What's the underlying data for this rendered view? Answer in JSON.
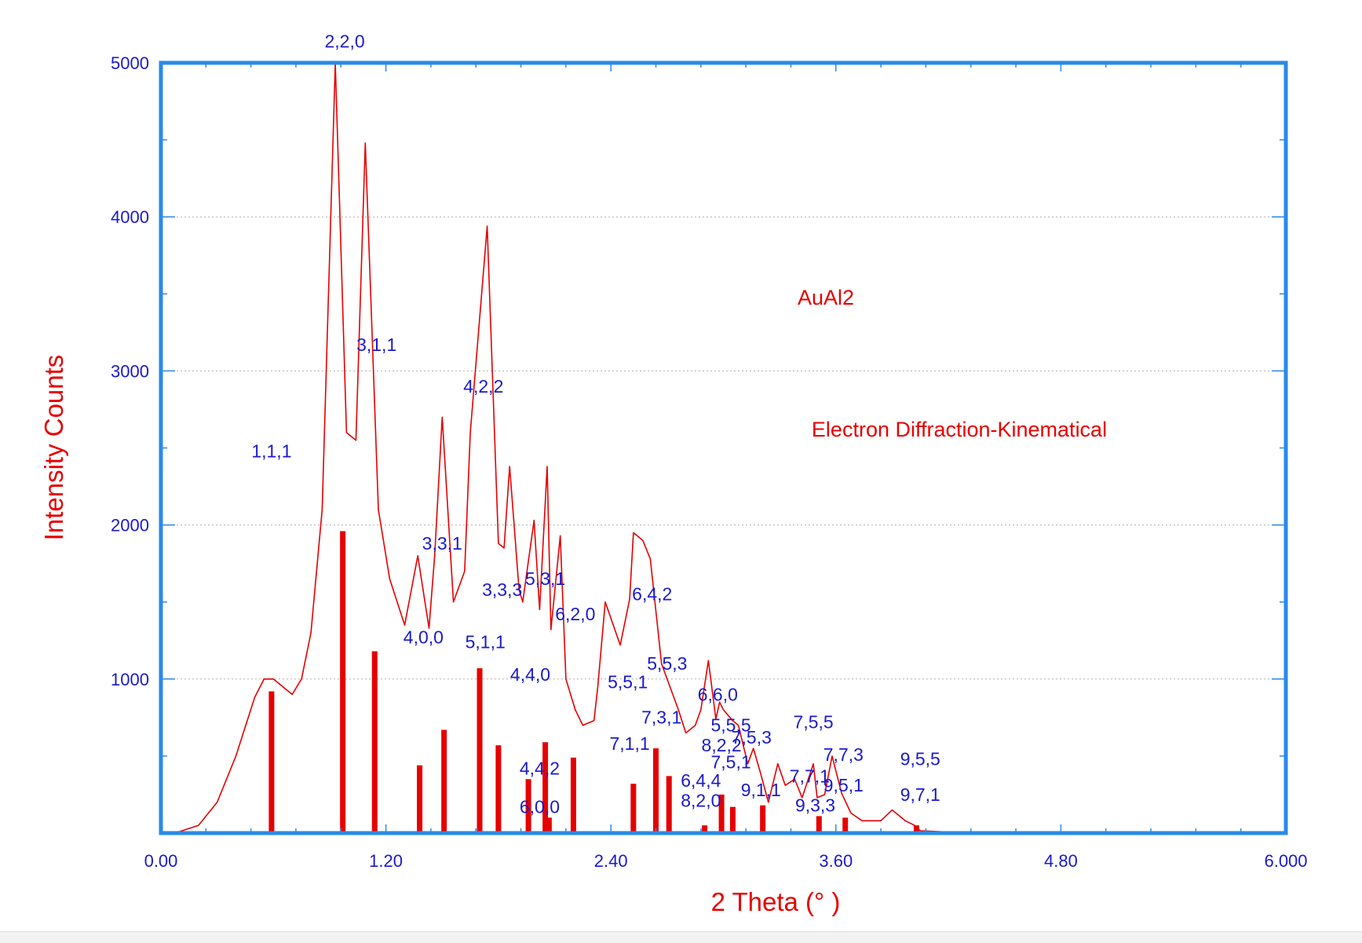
{
  "chart_data": {
    "type": "line",
    "xlabel": "2 Theta (° )",
    "ylabel": "Intensity Counts",
    "xlim": [
      0,
      6
    ],
    "ylim": [
      0,
      5000
    ],
    "x_ticks": [
      "0.00",
      "1.20",
      "2.40",
      "3.60",
      "4.80",
      "6.000"
    ],
    "y_ticks": [
      "1000",
      "2000",
      "3000",
      "4000",
      "5000"
    ],
    "y_grid": true,
    "annotations": [
      "AuAl2",
      "Electron Diffraction-Kinematical"
    ],
    "profile": {
      "x": [
        0.0,
        0.1,
        0.2,
        0.3,
        0.4,
        0.5,
        0.55,
        0.6,
        0.65,
        0.7,
        0.75,
        0.8,
        0.86,
        0.93,
        0.99,
        1.04,
        1.09,
        1.16,
        1.22,
        1.3,
        1.37,
        1.43,
        1.46,
        1.5,
        1.56,
        1.62,
        1.65,
        1.74,
        1.8,
        1.83,
        1.86,
        1.91,
        1.93,
        1.99,
        2.02,
        2.06,
        2.08,
        2.13,
        2.16,
        2.21,
        2.25,
        2.31,
        2.33,
        2.37,
        2.45,
        2.5,
        2.52,
        2.57,
        2.61,
        2.67,
        2.73,
        2.76,
        2.8,
        2.85,
        2.88,
        2.92,
        2.96,
        2.98,
        3.0,
        3.05,
        3.08,
        3.13,
        3.16,
        3.2,
        3.24,
        3.29,
        3.33,
        3.38,
        3.42,
        3.48,
        3.5,
        3.54,
        3.58,
        3.63,
        3.68,
        3.74,
        3.84,
        3.9,
        3.97,
        4.02,
        4.05,
        4.18,
        4.3,
        4.8
      ],
      "y": [
        0,
        10,
        50,
        200,
        500,
        880,
        1000,
        1000,
        950,
        900,
        1000,
        1300,
        2100,
        5000,
        2600,
        2550,
        4480,
        2100,
        1650,
        1350,
        1800,
        1330,
        1800,
        2700,
        1500,
        1700,
        2600,
        3940,
        1880,
        1850,
        2380,
        1580,
        1500,
        2030,
        1450,
        2380,
        1320,
        1930,
        1000,
        800,
        700,
        730,
        950,
        1500,
        1220,
        1520,
        1950,
        1900,
        1780,
        1100,
        900,
        800,
        650,
        700,
        800,
        1120,
        740,
        850,
        800,
        730,
        700,
        450,
        550,
        380,
        200,
        450,
        310,
        350,
        230,
        450,
        230,
        250,
        500,
        260,
        130,
        80,
        80,
        150,
        80,
        50,
        15,
        8,
        5,
        5
      ]
    },
    "bars": {
      "x": [
        0.59,
        0.97,
        1.14,
        1.38,
        1.51,
        1.7,
        1.8,
        1.96,
        2.05,
        2.07,
        2.2,
        2.52,
        2.64,
        2.71,
        2.9,
        2.99,
        3.05,
        3.21,
        3.51,
        3.65,
        4.03
      ],
      "y": [
        920,
        1960,
        1180,
        440,
        670,
        1070,
        570,
        350,
        590,
        100,
        490,
        320,
        550,
        370,
        50,
        250,
        170,
        180,
        110,
        100,
        50
      ]
    },
    "peak_labels": [
      {
        "text": "2,2,0",
        "x": 0.98,
        "y": 5100
      },
      {
        "text": "3,1,1",
        "x": 1.15,
        "y": 3130
      },
      {
        "text": "1,1,1",
        "x": 0.59,
        "y": 2440
      },
      {
        "text": "4,2,2",
        "x": 1.72,
        "y": 2860
      },
      {
        "text": "3,3,1",
        "x": 1.5,
        "y": 1840
      },
      {
        "text": "3,3,3",
        "x": 1.82,
        "y": 1540
      },
      {
        "text": "5,3,1",
        "x": 2.05,
        "y": 1610
      },
      {
        "text": "6,2,0",
        "x": 2.21,
        "y": 1380
      },
      {
        "text": "4,0,0",
        "x": 1.4,
        "y": 1230
      },
      {
        "text": "5,1,1",
        "x": 1.73,
        "y": 1200
      },
      {
        "text": "4,4,0",
        "x": 1.97,
        "y": 990
      },
      {
        "text": "6,4,2",
        "x": 2.62,
        "y": 1510
      },
      {
        "text": "5,5,3",
        "x": 2.7,
        "y": 1060
      },
      {
        "text": "5,5,1",
        "x": 2.49,
        "y": 940
      },
      {
        "text": "6,6,0",
        "x": 2.97,
        "y": 860
      },
      {
        "text": "7,3,1",
        "x": 2.67,
        "y": 710
      },
      {
        "text": "5,5,5",
        "x": 3.04,
        "y": 660
      },
      {
        "text": "7,5,3",
        "x": 3.15,
        "y": 580
      },
      {
        "text": "8,2,2",
        "x": 2.99,
        "y": 530
      },
      {
        "text": "7,5,5",
        "x": 3.48,
        "y": 680
      },
      {
        "text": "7,1,1",
        "x": 2.5,
        "y": 540
      },
      {
        "text": "7,5,1",
        "x": 3.04,
        "y": 420
      },
      {
        "text": "7,7,3",
        "x": 3.64,
        "y": 470
      },
      {
        "text": "9,5,5",
        "x": 4.05,
        "y": 440
      },
      {
        "text": "4,4,2",
        "x": 2.02,
        "y": 380
      },
      {
        "text": "6,4,4",
        "x": 2.88,
        "y": 300
      },
      {
        "text": "7,7,1",
        "x": 3.46,
        "y": 330
      },
      {
        "text": "9,5,1",
        "x": 3.64,
        "y": 270
      },
      {
        "text": "9,1,1",
        "x": 3.2,
        "y": 240
      },
      {
        "text": "8,2,0",
        "x": 2.88,
        "y": 170
      },
      {
        "text": "9,7,1",
        "x": 4.05,
        "y": 210
      },
      {
        "text": "6,0,0",
        "x": 2.02,
        "y": 130
      },
      {
        "text": "9,3,3",
        "x": 3.49,
        "y": 140
      }
    ]
  },
  "colors": {
    "frame": "#2a8ae8",
    "curve": "#e60000",
    "bars": "#e60000",
    "tick_labels": "#1a1acc",
    "peak_labels": "#1a1acc",
    "axis_titles": "#e60000",
    "grid": "#b0b0b0"
  }
}
